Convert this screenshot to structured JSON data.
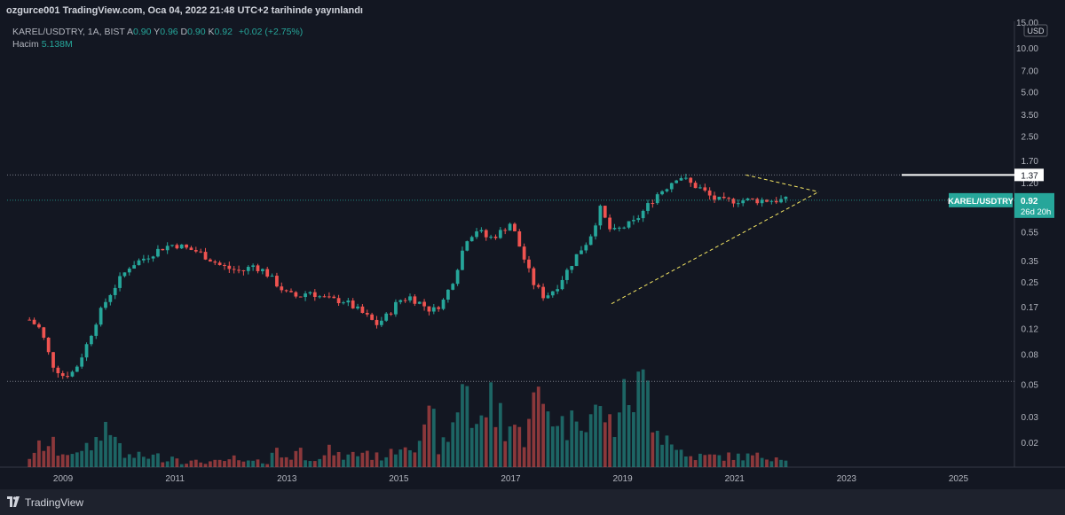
{
  "header": {
    "publish_line": "ozgurce001 TradingView.com, Oca 04, 2022 21:48 UTC+2 tarihinde yayınlandı"
  },
  "legend": {
    "symbol_line": "KAREL/USDTRY, 1A, BIST",
    "open_label": "A",
    "open_value": "0.90",
    "high_label": "Y",
    "high_value": "0.96",
    "low_label": "D",
    "low_value": "0.90",
    "close_label": "K",
    "close_value": "0.92",
    "change": "+0.02 (+2.75%)",
    "volume_label": "Hacim",
    "volume_value": "5.138M"
  },
  "price_axis": {
    "currency_badge": "USD",
    "ticks": [
      "15.00",
      "10.00",
      "7.00",
      "5.00",
      "3.50",
      "2.50",
      "1.70",
      "1.20",
      "0.55",
      "0.35",
      "0.25",
      "0.17",
      "0.12",
      "0.08",
      "0.05",
      "0.03",
      "0.02"
    ],
    "level_label": "1.37",
    "symbol_tag": "KAREL/USDTRY",
    "last_price": "0.92",
    "countdown": "26d 20h"
  },
  "time_axis": {
    "ticks": [
      "2009",
      "2011",
      "2013",
      "2015",
      "2017",
      "2019",
      "2021",
      "2023",
      "2025"
    ]
  },
  "colors": {
    "up": "#26a69a",
    "down": "#ef5350",
    "background": "#131722",
    "triangle": "#f5e663",
    "level": "#ffffff"
  },
  "chart_data": {
    "type": "candlestick",
    "title": "KAREL/USDTRY, 1A, BIST",
    "interval": "1A",
    "scale": "log",
    "ylim": [
      0.015,
      15
    ],
    "xlim": [
      "2008-01",
      "2026-01"
    ],
    "horizontal_levels": [
      1.37,
      0.92,
      0.053
    ],
    "x": [
      2008.4,
      2008.6,
      2008.8,
      2009.0,
      2009.2,
      2009.4,
      2009.6,
      2009.8,
      2010.0,
      2010.2,
      2010.4,
      2010.6,
      2010.8,
      2011.0,
      2011.2,
      2011.4,
      2011.6,
      2011.8,
      2012.0,
      2012.2,
      2012.4,
      2012.6,
      2012.8,
      2013.0,
      2013.2,
      2013.4,
      2013.6,
      2013.8,
      2014.0,
      2014.2,
      2014.4,
      2014.6,
      2014.8,
      2015.0,
      2015.2,
      2015.4,
      2015.6,
      2015.8,
      2016.0,
      2016.2,
      2016.4,
      2016.6,
      2016.8,
      2017.0,
      2017.2,
      2017.4,
      2017.6,
      2017.8,
      2018.0,
      2018.2,
      2018.4,
      2018.6,
      2018.8,
      2019.0,
      2019.2,
      2019.4,
      2019.6,
      2019.8,
      2020.0,
      2020.2,
      2020.4,
      2020.6,
      2020.8,
      2021.0,
      2021.2,
      2021.4,
      2021.6,
      2021.8,
      2022.0
    ],
    "series": [
      {
        "name": "KAREL/USDTRY",
        "values_close": [
          0.14,
          0.12,
          0.07,
          0.058,
          0.062,
          0.09,
          0.14,
          0.2,
          0.26,
          0.33,
          0.36,
          0.4,
          0.44,
          0.46,
          0.43,
          0.41,
          0.37,
          0.33,
          0.31,
          0.3,
          0.33,
          0.3,
          0.25,
          0.21,
          0.2,
          0.22,
          0.2,
          0.19,
          0.19,
          0.17,
          0.15,
          0.13,
          0.15,
          0.19,
          0.2,
          0.18,
          0.16,
          0.19,
          0.28,
          0.5,
          0.58,
          0.5,
          0.55,
          0.65,
          0.4,
          0.25,
          0.2,
          0.23,
          0.3,
          0.4,
          0.5,
          0.8,
          0.55,
          0.6,
          0.65,
          0.8,
          1.0,
          1.15,
          1.37,
          1.2,
          1.1,
          0.95,
          0.9,
          0.92,
          0.92,
          0.92,
          0.92,
          0.92,
          0.92
        ]
      },
      {
        "name": "Hacim",
        "values_relative": [
          0.1,
          0.2,
          0.2,
          0.15,
          0.1,
          0.2,
          0.25,
          0.45,
          0.2,
          0.1,
          0.1,
          0.1,
          0.08,
          0.1,
          0.05,
          0.05,
          0.05,
          0.05,
          0.08,
          0.05,
          0.05,
          0.05,
          0.15,
          0.1,
          0.15,
          0.1,
          0.1,
          0.15,
          0.1,
          0.12,
          0.15,
          0.1,
          0.12,
          0.2,
          0.25,
          0.3,
          0.4,
          0.2,
          0.5,
          0.9,
          0.4,
          0.6,
          0.5,
          0.4,
          0.3,
          0.6,
          0.55,
          0.5,
          0.4,
          0.6,
          0.5,
          0.5,
          0.4,
          0.6,
          0.7,
          0.75,
          0.5,
          0.3,
          0.15,
          0.1,
          0.1,
          0.1,
          0.1,
          0.1,
          0.1,
          0.1,
          0.1,
          0.1,
          0.1
        ]
      }
    ]
  }
}
